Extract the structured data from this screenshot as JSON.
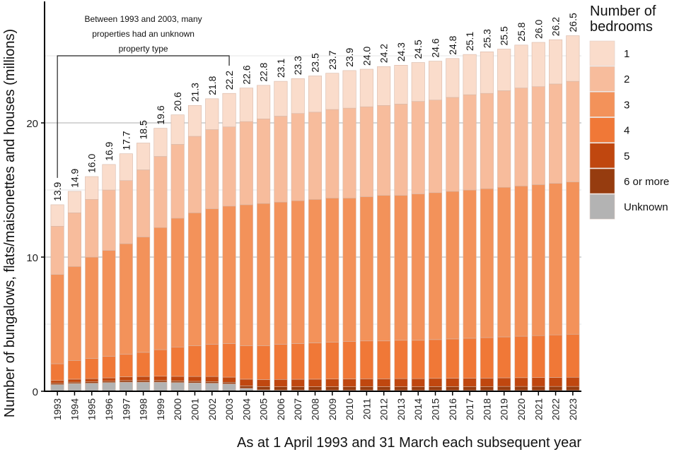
{
  "chart_data": {
    "type": "bar",
    "stacked": true,
    "title": "",
    "xlabel": "As at 1 April 1993 and 31 March each subsequent year",
    "ylabel": "Number of bungalows, flats/maisonettes and houses (millions)",
    "ylim": [
      0,
      27
    ],
    "yticks": [
      0,
      10,
      20
    ],
    "minor_gridlines": [
      5,
      15,
      25
    ],
    "grid": true,
    "legend": {
      "title_lines": [
        "Number of",
        "bedrooms"
      ],
      "position": "right"
    },
    "categories": [
      "1993",
      "1994",
      "1995",
      "1996",
      "1997",
      "1998",
      "1999",
      "2000",
      "2001",
      "2002",
      "2003",
      "2004",
      "2005",
      "2006",
      "2007",
      "2008",
      "2009",
      "2010",
      "2011",
      "2012",
      "2013",
      "2014",
      "2015",
      "2016",
      "2017",
      "2018",
      "2019",
      "2020",
      "2021",
      "2022",
      "2023"
    ],
    "totals": [
      13.9,
      14.9,
      16.0,
      16.9,
      17.7,
      18.5,
      19.6,
      20.6,
      21.3,
      21.8,
      22.2,
      22.6,
      22.8,
      23.1,
      23.3,
      23.5,
      23.7,
      23.9,
      24.0,
      24.2,
      24.3,
      24.5,
      24.6,
      24.8,
      25.1,
      25.3,
      25.5,
      25.8,
      26.0,
      26.2,
      26.5
    ],
    "series": [
      {
        "name": "Unknown",
        "color": "#b3b3b3",
        "values": [
          0.5,
          0.58,
          0.6,
          0.65,
          0.68,
          0.68,
          0.68,
          0.65,
          0.62,
          0.6,
          0.55,
          0.22,
          0.1,
          0.08,
          0.08,
          0.07,
          0.07,
          0.07,
          0.07,
          0.06,
          0.06,
          0.06,
          0.06,
          0.06,
          0.06,
          0.06,
          0.06,
          0.06,
          0.06,
          0.06,
          0.06
        ]
      },
      {
        "name": "6 or more",
        "color": "#963c0f",
        "values": [
          0.1,
          0.1,
          0.1,
          0.1,
          0.12,
          0.12,
          0.12,
          0.12,
          0.12,
          0.12,
          0.12,
          0.18,
          0.25,
          0.26,
          0.26,
          0.27,
          0.27,
          0.27,
          0.28,
          0.28,
          0.28,
          0.28,
          0.29,
          0.29,
          0.29,
          0.29,
          0.3,
          0.3,
          0.3,
          0.3,
          0.3
        ]
      },
      {
        "name": "5",
        "color": "#c0470f",
        "values": [
          0.2,
          0.22,
          0.24,
          0.25,
          0.28,
          0.3,
          0.32,
          0.34,
          0.36,
          0.38,
          0.38,
          0.5,
          0.52,
          0.54,
          0.55,
          0.56,
          0.57,
          0.58,
          0.58,
          0.59,
          0.6,
          0.6,
          0.61,
          0.62,
          0.62,
          0.63,
          0.64,
          0.65,
          0.66,
          0.67,
          0.68
        ]
      },
      {
        "name": "4",
        "color": "#f07837",
        "values": [
          1.25,
          1.4,
          1.51,
          1.6,
          1.67,
          1.8,
          1.98,
          2.19,
          2.3,
          2.4,
          2.5,
          2.5,
          2.53,
          2.62,
          2.66,
          2.7,
          2.74,
          2.78,
          2.82,
          2.82,
          2.86,
          2.86,
          2.89,
          2.93,
          2.98,
          3.02,
          3.05,
          3.09,
          3.13,
          3.17,
          3.21
        ]
      },
      {
        "name": "3",
        "color": "#f3925a",
        "values": [
          6.65,
          7.0,
          7.55,
          7.9,
          8.25,
          8.6,
          9.1,
          9.6,
          9.9,
          10.1,
          10.25,
          10.5,
          10.6,
          10.6,
          10.65,
          10.7,
          10.75,
          10.7,
          10.75,
          10.85,
          10.8,
          10.9,
          10.95,
          11.0,
          11.05,
          11.1,
          11.15,
          11.2,
          11.25,
          11.3,
          11.35
        ]
      },
      {
        "name": "2",
        "color": "#f7bc9c",
        "values": [
          3.6,
          4.0,
          4.3,
          4.5,
          4.7,
          5.0,
          5.3,
          5.5,
          5.7,
          5.9,
          5.9,
          6.2,
          6.3,
          6.4,
          6.5,
          6.5,
          6.6,
          6.7,
          6.7,
          6.7,
          6.8,
          6.9,
          6.9,
          7.0,
          7.1,
          7.1,
          7.2,
          7.3,
          7.3,
          7.4,
          7.5
        ]
      },
      {
        "name": "1",
        "color": "#fadccb",
        "values": [
          1.6,
          1.6,
          1.7,
          1.9,
          2.0,
          2.0,
          2.1,
          2.2,
          2.3,
          2.3,
          2.5,
          2.5,
          2.5,
          2.6,
          2.6,
          2.7,
          2.7,
          2.8,
          2.8,
          2.9,
          2.9,
          2.9,
          2.9,
          2.9,
          3.0,
          3.1,
          3.1,
          3.2,
          3.3,
          3.3,
          3.4
        ]
      }
    ],
    "legend_order": [
      "1",
      "2",
      "3",
      "4",
      "5",
      "6 or more",
      "Unknown"
    ],
    "annotation": {
      "lines": [
        "Between 1993 and 2003, many",
        "properties had an unknown",
        "property type"
      ],
      "spans": [
        "1993",
        "2003"
      ]
    }
  }
}
